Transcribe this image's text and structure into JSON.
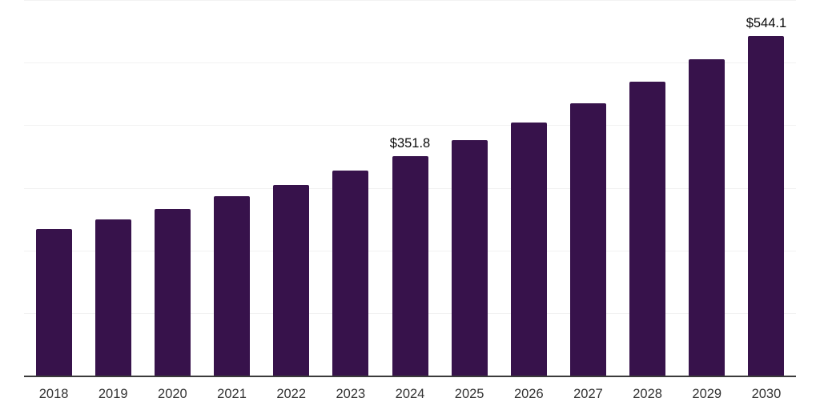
{
  "chart_data": {
    "type": "bar",
    "title": "",
    "categories": [
      "2018",
      "2019",
      "2020",
      "2021",
      "2022",
      "2023",
      "2024",
      "2025",
      "2026",
      "2027",
      "2028",
      "2029",
      "2030"
    ],
    "values": [
      234.8,
      251.4,
      268.0,
      288.5,
      305.8,
      328.7,
      351.8,
      377.3,
      405.7,
      436.8,
      470.4,
      506.7,
      544.1
    ],
    "data_labels": {
      "2024": "$351.8",
      "2030": "$544.1"
    },
    "xlabel": "",
    "ylabel": "",
    "ylim": [
      0,
      600
    ],
    "gridline_values": [
      100,
      200,
      300,
      400,
      500,
      600
    ],
    "y_tick_labels_visible": false,
    "legend": "none",
    "grid": "horizontal",
    "colors": {
      "bar": "#37124B",
      "axis_line": "#3b3b3b",
      "gridline": "#f2f2f2",
      "tick_label": "#333333",
      "data_label": "#0a0a0a",
      "background": "#ffffff"
    }
  }
}
